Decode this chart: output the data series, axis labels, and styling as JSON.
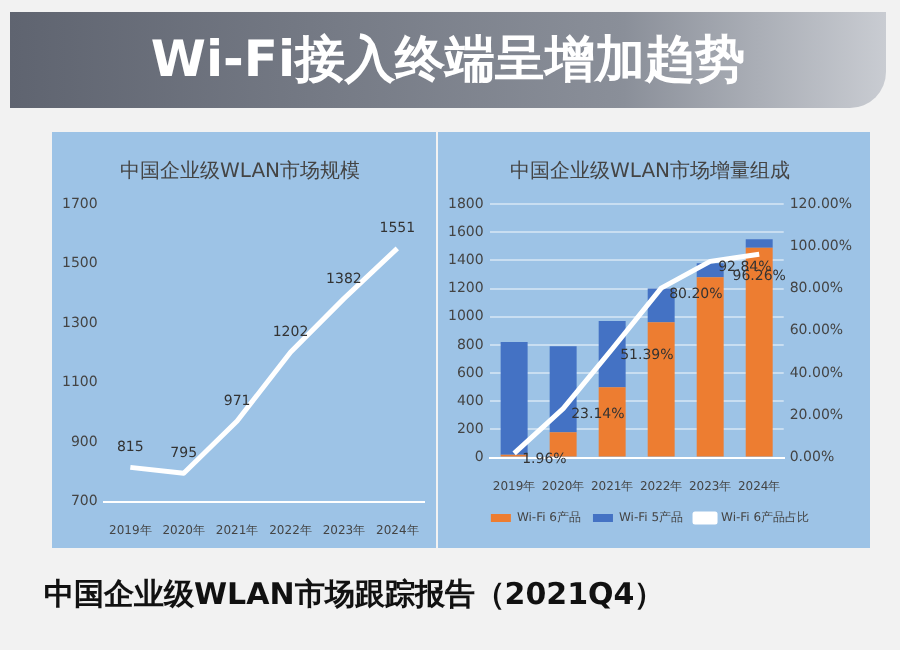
{
  "chart_data": [
    {
      "type": "line",
      "title": "中国企业级WLAN市场规模",
      "categories": [
        "2019年",
        "2020年",
        "2021年",
        "2022年",
        "2023年",
        "2024年"
      ],
      "series": [
        {
          "color": "#ffffff",
          "values": [
            815,
            795,
            971,
            1202,
            1382,
            1551
          ]
        }
      ],
      "ylim": [
        700,
        1700
      ],
      "yticks": [
        700,
        900,
        1100,
        1300,
        1500,
        1700
      ],
      "grid": false,
      "legend": false,
      "data_labels": true,
      "marker": "none",
      "annotations": [
        "Wi-Fi接入终端呈增加趋势"
      ]
    },
    {
      "type": "bar",
      "title": "中国企业级WLAN市场增量组成",
      "categories": [
        "2019年",
        "2020年",
        "2021年",
        "2022年",
        "2023年",
        "2024年"
      ],
      "stacked": true,
      "series": [
        {
          "name": "Wi-Fi 6产品",
          "color": "#ed7d31",
          "values": [
            20,
            180,
            500,
            960,
            1280,
            1490
          ]
        },
        {
          "name": "Wi-Fi 5产品",
          "color": "#4472c4",
          "values": [
            800,
            610,
            470,
            240,
            100,
            60
          ]
        },
        {
          "name": "Wi-Fi 6产品占比",
          "type": "line",
          "axis": "y2",
          "color": "#ffffff",
          "values": [
            1.96,
            23.14,
            51.39,
            80.2,
            92.84,
            96.26
          ],
          "value_labels": [
            "1.96%",
            "23.14%",
            "51.39%",
            "80.20%",
            "92.84%",
            "96.26%"
          ]
        }
      ],
      "ylim": [
        0,
        1800
      ],
      "yticks": [
        0,
        200,
        400,
        600,
        800,
        1000,
        1200,
        1400,
        1600,
        1800
      ],
      "y2lim": [
        0,
        120
      ],
      "y2ticks": [
        {
          "value": 0,
          "label": "0.00%"
        },
        {
          "value": 20,
          "label": "20.00%"
        },
        {
          "value": 40,
          "label": "40.00%"
        },
        {
          "value": 60,
          "label": "60.00%"
        },
        {
          "value": 80,
          "label": "80.00%"
        },
        {
          "value": 100,
          "label": "100.00%"
        },
        {
          "value": 120,
          "label": "120.00%"
        }
      ],
      "grid": "y",
      "legend": "bottom",
      "marker": "none",
      "annotations": [
        "中国企业级WLAN市场跟踪报告（2021Q4）"
      ]
    }
  ]
}
